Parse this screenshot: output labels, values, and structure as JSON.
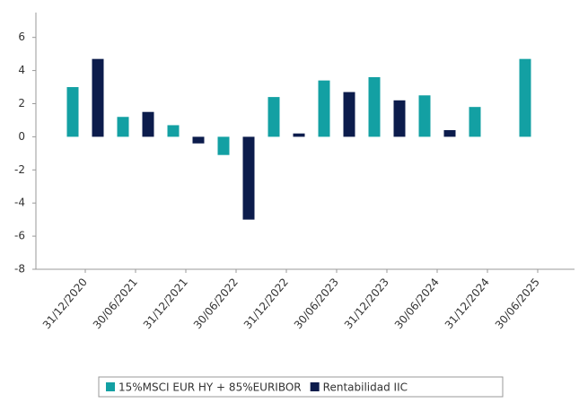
{
  "chart_data": {
    "type": "bar",
    "categories": [
      "31/12/2020",
      "30/06/2021",
      "31/12/2021",
      "30/06/2022",
      "31/12/2022",
      "30/06/2023",
      "31/12/2023",
      "30/06/2024",
      "31/12/2024",
      "30/06/2025"
    ],
    "series": [
      {
        "name": "15%MSCI EUR HY + 85%EURIBOR",
        "color": "#13a0a3",
        "values": [
          3.0,
          1.2,
          0.7,
          -1.1,
          2.4,
          3.4,
          3.6,
          2.5,
          1.8,
          4.7
        ]
      },
      {
        "name": "Rentabilidad IIC",
        "color": "#0c1c4c",
        "values": [
          4.7,
          1.5,
          -0.4,
          -5.0,
          0.2,
          2.7,
          2.2,
          0.4,
          null,
          null
        ]
      }
    ],
    "ylim": [
      -8,
      7.5
    ],
    "yticks": [
      -8,
      -6,
      -4,
      -2,
      0,
      2,
      4,
      6
    ],
    "grid": false,
    "legend": "bottom"
  }
}
